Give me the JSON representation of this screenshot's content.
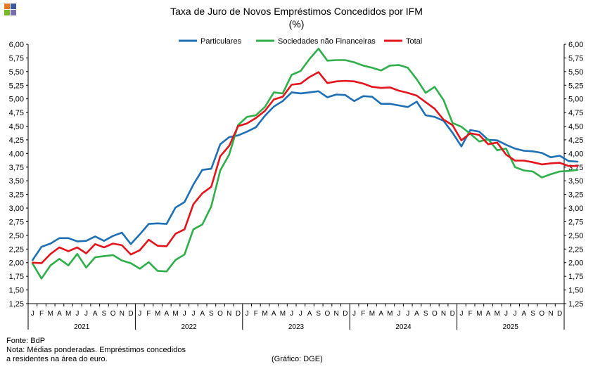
{
  "header": {
    "title": "Taxa de Juro de Novos Empréstimos  Concedidos por IFM",
    "subtitle": "(%)"
  },
  "logo": {
    "name": "bdp-logo",
    "colors": [
      "#e87722",
      "#3d5a9e",
      "#79b928",
      "#7a6fb0"
    ]
  },
  "footer": {
    "source": "Fonte: BdP",
    "note_line1": "Nota: Médias ponderadas. Empréstimos concedidos",
    "note_line2": "a residentes na área do euro.",
    "credit": "(Gráfico: DGE)"
  },
  "chart_data": {
    "type": "line",
    "title": "Taxa de Juro de Novos Empréstimos  Concedidos por IFM",
    "ylabel": "(%)",
    "ylim": [
      1.25,
      6.0
    ],
    "ytick_step": 0.25,
    "grid": false,
    "legend_position": "top-center",
    "month_labels": [
      "J",
      "F",
      "M",
      "A",
      "M",
      "J",
      "J",
      "A",
      "S",
      "O",
      "N",
      "D"
    ],
    "years": [
      "2021",
      "2022",
      "2023",
      "2024",
      "2025"
    ],
    "series": [
      {
        "name": "Particulares",
        "color": "#1f6fb5",
        "values": [
          2.05,
          2.29,
          2.35,
          2.45,
          2.45,
          2.39,
          2.4,
          2.48,
          2.4,
          2.49,
          2.55,
          2.34,
          2.52,
          2.71,
          2.72,
          2.71,
          3.01,
          3.11,
          3.43,
          3.7,
          3.72,
          4.17,
          4.3,
          4.33,
          4.4,
          4.48,
          4.69,
          4.86,
          4.96,
          5.12,
          5.1,
          5.12,
          5.14,
          5.03,
          5.08,
          5.07,
          4.96,
          5.05,
          5.04,
          4.91,
          4.91,
          4.88,
          4.85,
          4.95,
          4.7,
          4.67,
          4.6,
          4.38,
          4.13,
          4.43,
          4.4,
          4.25,
          4.24,
          4.16,
          4.09,
          4.05,
          4.04,
          4.01,
          3.93,
          3.96,
          3.86,
          3.85
        ]
      },
      {
        "name": "Sociedades não Financeiras",
        "color": "#2fae4a",
        "values": [
          1.98,
          1.71,
          1.95,
          2.07,
          1.95,
          2.16,
          1.91,
          2.1,
          2.12,
          2.14,
          2.04,
          1.99,
          1.89,
          2.01,
          1.85,
          1.84,
          2.05,
          2.15,
          2.61,
          2.7,
          3.03,
          3.69,
          3.98,
          4.52,
          4.67,
          4.7,
          4.85,
          5.12,
          5.1,
          5.44,
          5.51,
          5.73,
          5.92,
          5.7,
          5.71,
          5.71,
          5.67,
          5.61,
          5.57,
          5.52,
          5.61,
          5.62,
          5.57,
          5.36,
          5.11,
          5.22,
          4.98,
          4.56,
          4.49,
          4.36,
          4.22,
          4.26,
          4.06,
          4.09,
          3.75,
          3.69,
          3.67,
          3.56,
          3.62,
          3.67,
          3.68,
          3.7
        ]
      },
      {
        "name": "Total",
        "color": "#e3141b",
        "values": [
          2.0,
          1.99,
          2.16,
          2.28,
          2.21,
          2.28,
          2.17,
          2.34,
          2.28,
          2.35,
          2.32,
          2.15,
          2.23,
          2.42,
          2.31,
          2.3,
          2.53,
          2.61,
          3.07,
          3.27,
          3.39,
          3.95,
          4.14,
          4.5,
          4.55,
          4.65,
          4.78,
          4.99,
          5.04,
          5.26,
          5.28,
          5.4,
          5.49,
          5.29,
          5.32,
          5.33,
          5.32,
          5.28,
          5.22,
          5.2,
          5.21,
          5.15,
          5.11,
          5.06,
          4.94,
          4.82,
          4.62,
          4.52,
          4.24,
          4.37,
          4.34,
          4.17,
          4.2,
          3.98,
          3.87,
          3.87,
          3.84,
          3.8,
          3.82,
          3.83,
          3.77,
          3.77
        ]
      }
    ]
  }
}
